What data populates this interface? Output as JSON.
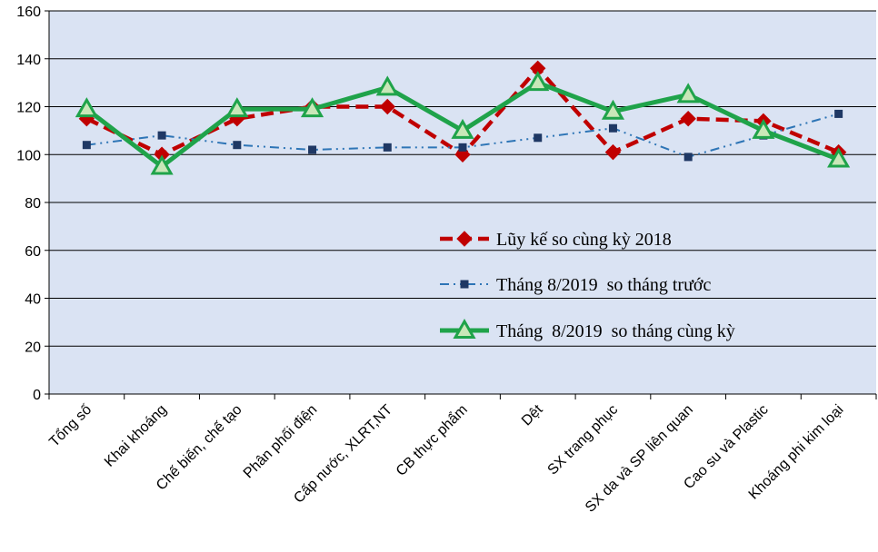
{
  "chart_data": {
    "type": "line",
    "title": "",
    "xlabel": "",
    "ylabel": "",
    "ylim": [
      0,
      160
    ],
    "yticks": [
      0,
      20,
      40,
      60,
      80,
      100,
      120,
      140,
      160
    ],
    "grid": true,
    "legend_position": "right-middle",
    "plot_background": "#dae3f3",
    "categories": [
      "Tổng số",
      "Khai khoáng",
      "Chế biến, chế tạo",
      "Phân phối điện",
      "Cấp nước, XLRT,NT",
      "CB thực phẩm",
      "Dệt",
      "SX trang phục",
      "SX da và SP liên quan",
      "Cao su và Plastic",
      "Khoáng phi kim loại"
    ],
    "series": [
      {
        "name": "Lũy kế so cùng kỳ 2018",
        "values": [
          115,
          100,
          115,
          120,
          120,
          100,
          136,
          101,
          115,
          114,
          101
        ],
        "color": "#c00000",
        "style": "dashed",
        "marker": "diamond"
      },
      {
        "name": "Tháng 8/2019  so tháng trước",
        "values": [
          104,
          108,
          104,
          102,
          103,
          103,
          107,
          111,
          99,
          108,
          117
        ],
        "color": "#2e75b6",
        "style": "dash-dot-dot",
        "marker": "square"
      },
      {
        "name": "Tháng  8/2019  so tháng cùng kỳ",
        "values": [
          119,
          95,
          119,
          119,
          128,
          110,
          130,
          118,
          125,
          110,
          98
        ],
        "color": "#1fa34a",
        "style": "solid",
        "marker": "triangle"
      }
    ]
  }
}
